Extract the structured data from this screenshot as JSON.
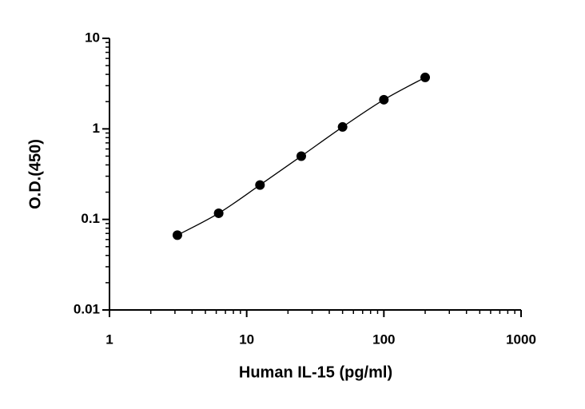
{
  "chart_data": {
    "type": "scatter",
    "x_label": "Human IL-15 (pg/ml)",
    "y_label": "O.D.(450)",
    "x": [
      3.125,
      6.25,
      12.5,
      25,
      50,
      100,
      200
    ],
    "series": [
      {
        "values": [
          0.067,
          0.117,
          0.24,
          0.5,
          1.05,
          2.1,
          3.7
        ],
        "color": "#000000"
      }
    ],
    "xlim": [
      1,
      1000
    ],
    "ylim": [
      0.01,
      10
    ],
    "xticks": [
      1,
      10,
      100,
      1000
    ],
    "yticks": [
      0.01,
      0.1,
      1,
      10
    ],
    "xscale": "log",
    "yscale": "log",
    "minor_ticks": true,
    "fit_line": true
  }
}
